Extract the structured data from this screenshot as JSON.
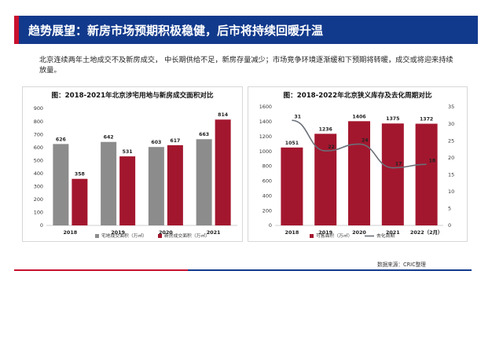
{
  "header": {
    "title": "趋势展望：新房市场预期积极稳健，后市将持续回暖升温"
  },
  "description": "北京连续两年土地成交不及新房成交，  中长期供给不足，新房存量减少；市场竞争环境逐渐缓和下预期将转暖，成交或将迎来持续放量。",
  "source": "数据来源：CRIC整理",
  "colors": {
    "gray_bar": "#8c8c8c",
    "red_bar": "#a3172e",
    "line": "#6a6f78",
    "header_bg": "#123a8c",
    "accent": "#c8102e"
  },
  "chart_data": [
    {
      "type": "bar",
      "title": "图：2018-2021年北京涉宅用地与新房成交面积对比",
      "categories": [
        "2018",
        "2019",
        "2020",
        "2021"
      ],
      "series": [
        {
          "name": "宅地成交面积（万㎡）",
          "values": [
            626,
            642,
            603,
            663
          ]
        },
        {
          "name": "新房成交面积（万㎡）",
          "values": [
            358,
            531,
            617,
            814
          ]
        }
      ],
      "ylim": [
        0,
        900
      ],
      "yticks": [
        "0",
        "100",
        "200",
        "300",
        "400",
        "500",
        "600",
        "700",
        "800",
        "900"
      ],
      "legend": "bottom",
      "grid": false
    },
    {
      "type": "bar",
      "title": "图：2018-2022年北京狭义库存及去化周期对比",
      "categories": [
        "2018",
        "2019",
        "2020",
        "2021",
        "2022（2月）"
      ],
      "series": [
        {
          "name": "可售面积（万㎡）",
          "type": "bar",
          "axis": "left",
          "values": [
            1051,
            1236,
            1406,
            1375,
            1372
          ]
        },
        {
          "name": "去化周期",
          "type": "line",
          "axis": "right",
          "values": [
            31,
            22,
            24,
            17,
            18
          ]
        }
      ],
      "ylim": [
        0,
        1600
      ],
      "yticks": [
        "0",
        "200",
        "400",
        "600",
        "800",
        "1000",
        "1200",
        "1400",
        "1600"
      ],
      "y2lim": [
        0,
        35
      ],
      "y2ticks": [
        "0",
        "5",
        "10",
        "15",
        "20",
        "25",
        "30",
        "35"
      ],
      "legend": "bottom",
      "grid": false
    }
  ]
}
